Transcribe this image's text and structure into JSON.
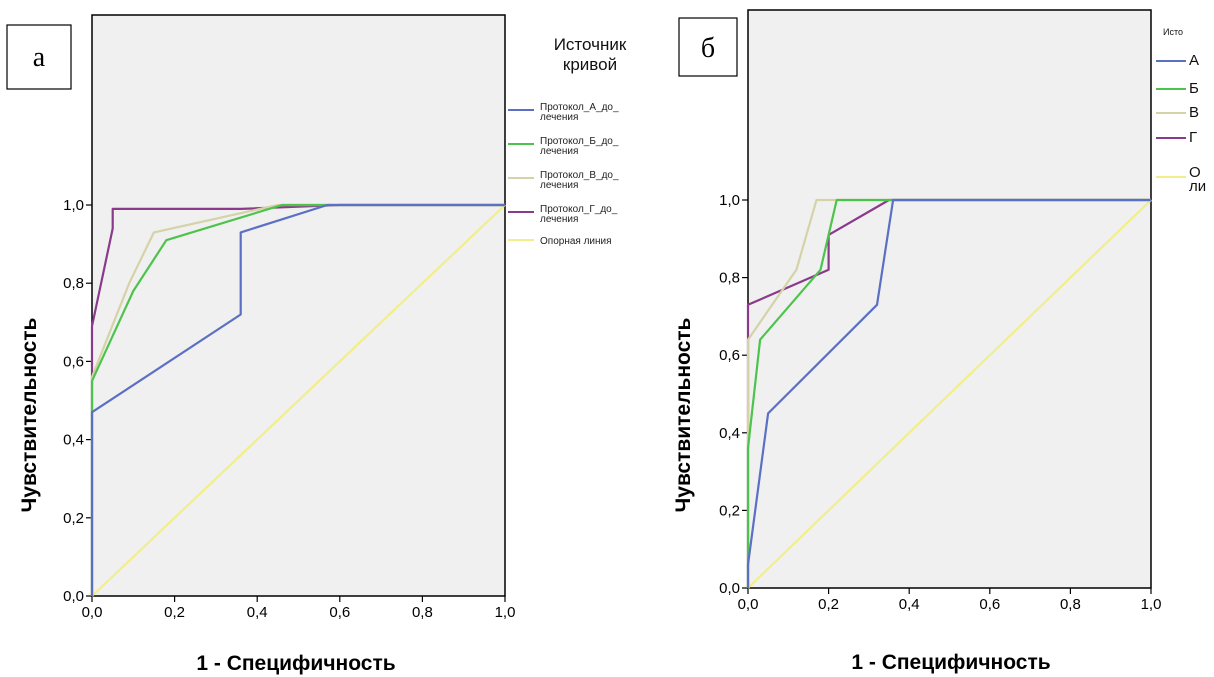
{
  "chart_data": [
    {
      "type": "line",
      "panel_label": "а",
      "xlabel": "1 - Специфичность",
      "ylabel": "Чувствительность",
      "xlim": [
        0,
        1
      ],
      "ylim": [
        0,
        1
      ],
      "x_ticks": [
        "0,0",
        "0,2",
        "0,4",
        "0,6",
        "0,8",
        "1,0"
      ],
      "y_ticks": [
        "0,0",
        "0,2",
        "0,4",
        "0,6",
        "0,8",
        "1,0"
      ],
      "legend_title": [
        "Источник",
        "кривой"
      ],
      "series": [
        {
          "name": [
            "Протокол_А_до_",
            "лечения"
          ],
          "color": "#5b6fc4",
          "points": [
            [
              0,
              0
            ],
            [
              0,
              0.47
            ],
            [
              0.36,
              0.72
            ],
            [
              0.36,
              0.93
            ],
            [
              0.57,
              1.0
            ],
            [
              1,
              1
            ]
          ]
        },
        {
          "name": [
            "Протокол_Б_до_",
            "лечения"
          ],
          "color": "#4cc44c",
          "points": [
            [
              0,
              0
            ],
            [
              0,
              0.55
            ],
            [
              0.1,
              0.78
            ],
            [
              0.18,
              0.91
            ],
            [
              0.46,
              1.0
            ],
            [
              1,
              1
            ]
          ]
        },
        {
          "name": [
            "Протокол_В_до_",
            "лечения"
          ],
          "color": "#d6d2a8",
          "points": [
            [
              0,
              0
            ],
            [
              0,
              0.56
            ],
            [
              0.09,
              0.8
            ],
            [
              0.15,
              0.93
            ],
            [
              0.45,
              1.0
            ],
            [
              1,
              1
            ]
          ]
        },
        {
          "name": [
            "Протокол_Г_до_",
            "лечения"
          ],
          "color": "#8a3a8a",
          "points": [
            [
              0,
              0
            ],
            [
              0,
              0.69
            ],
            [
              0.05,
              0.94
            ],
            [
              0.05,
              0.99
            ],
            [
              0.36,
              0.99
            ],
            [
              0.6,
              1.0
            ],
            [
              1,
              1
            ]
          ]
        },
        {
          "name": [
            "Опорная линия"
          ],
          "color": "#f2ee8a",
          "points": [
            [
              0,
              0
            ],
            [
              1,
              1
            ]
          ]
        }
      ]
    },
    {
      "type": "line",
      "panel_label": "б",
      "xlabel": "1 - Специфичность",
      "ylabel": "Чувствительность",
      "xlim": [
        0,
        1
      ],
      "ylim": [
        0,
        1
      ],
      "x_ticks": [
        "0,0",
        "0,2",
        "0,4",
        "0,6",
        "0,8",
        "1,0"
      ],
      "y_ticks": [
        "0,0",
        "0,2",
        "0,4",
        "0,6",
        "0,8",
        "1,0"
      ],
      "legend_title": [
        "Исто"
      ],
      "series": [
        {
          "name": [
            "А"
          ],
          "color": "#5b6fc4",
          "points": [
            [
              0,
              0
            ],
            [
              0,
              0.06
            ],
            [
              0.05,
              0.45
            ],
            [
              0.32,
              0.73
            ],
            [
              0.36,
              1.0
            ],
            [
              1,
              1
            ]
          ]
        },
        {
          "name": [
            "Б"
          ],
          "color": "#4cc44c",
          "points": [
            [
              0,
              0
            ],
            [
              0,
              0.36
            ],
            [
              0.03,
              0.64
            ],
            [
              0.18,
              0.82
            ],
            [
              0.22,
              1.0
            ],
            [
              1,
              1
            ]
          ]
        },
        {
          "name": [
            "В"
          ],
          "color": "#d6d2a8",
          "points": [
            [
              0,
              0
            ],
            [
              0,
              0.64
            ],
            [
              0.12,
              0.82
            ],
            [
              0.17,
              1.0
            ],
            [
              1,
              1
            ]
          ]
        },
        {
          "name": [
            "Г"
          ],
          "color": "#8a3a8a",
          "points": [
            [
              0,
              0
            ],
            [
              0,
              0.73
            ],
            [
              0.2,
              0.82
            ],
            [
              0.2,
              0.91
            ],
            [
              0.35,
              1.0
            ],
            [
              1,
              1
            ]
          ]
        },
        {
          "name": [
            "О",
            "ли"
          ],
          "color": "#f2ee8a",
          "points": [
            [
              0,
              0
            ],
            [
              1,
              1
            ]
          ]
        }
      ]
    }
  ]
}
